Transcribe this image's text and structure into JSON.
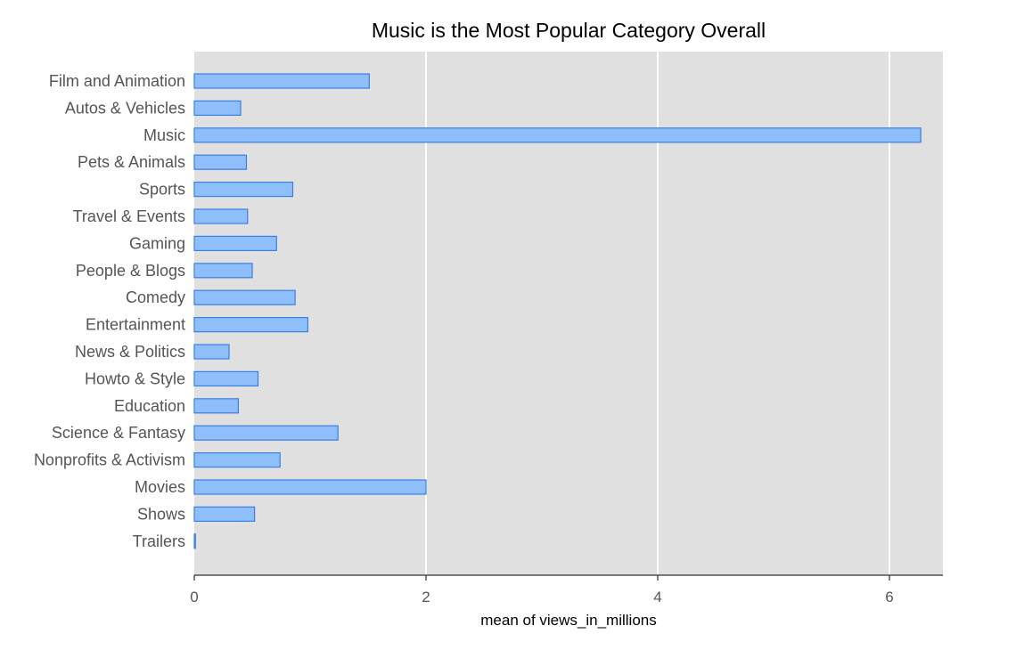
{
  "chart_data": {
    "type": "bar",
    "orientation": "horizontal",
    "title": "Music is the Most Popular Category Overall",
    "xlabel": "mean of views_in_millions",
    "ylabel": "",
    "categories": [
      "Film and Animation",
      "Autos & Vehicles",
      "Music",
      "Pets & Animals",
      "Sports",
      "Travel & Events",
      "Gaming",
      "People & Blogs",
      "Comedy",
      "Entertainment",
      "News & Politics",
      "Howto & Style",
      "Education",
      "Science & Fantasy",
      "Nonprofits & Activism",
      "Movies",
      "Shows",
      "Trailers"
    ],
    "values": [
      1.51,
      0.4,
      6.27,
      0.45,
      0.85,
      0.46,
      0.71,
      0.5,
      0.87,
      0.98,
      0.3,
      0.55,
      0.38,
      1.24,
      0.74,
      2.0,
      0.52,
      0.01
    ],
    "xlim": [
      0,
      6.45
    ],
    "xticks": [
      0,
      2,
      4,
      6
    ],
    "xtick_labels": [
      "0",
      "2",
      "4",
      "6"
    ],
    "grid": true,
    "colors": {
      "bar_fill": "#8fbffa",
      "bar_stroke": "#3a7ee6",
      "plot_background": "#e0e0e0",
      "grid": "#ffffff"
    }
  }
}
